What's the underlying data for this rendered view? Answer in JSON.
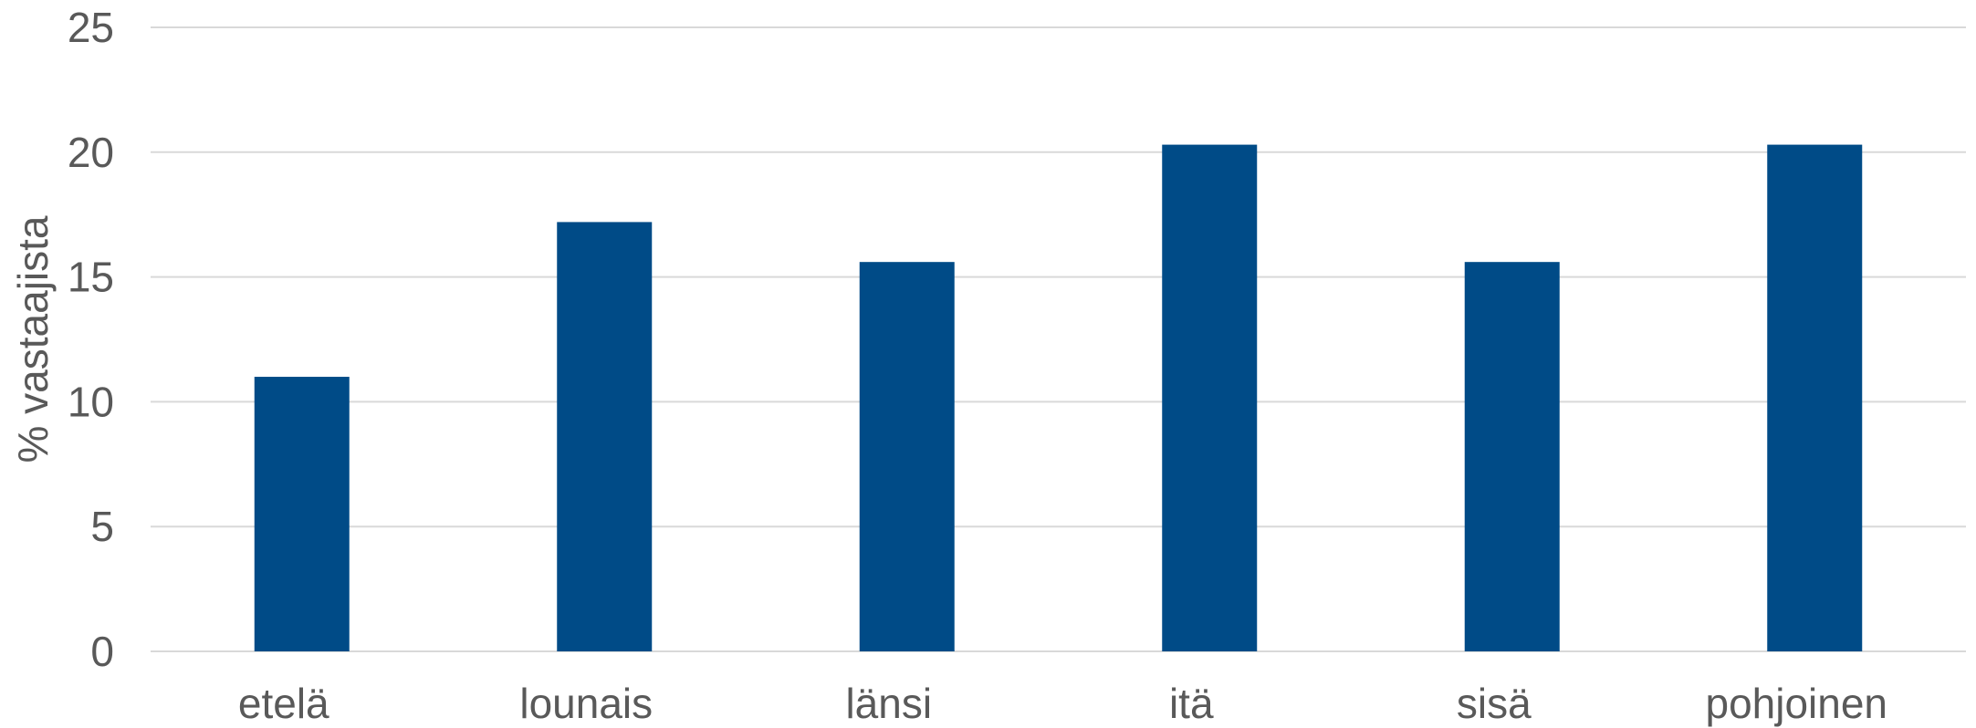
{
  "chart_data": {
    "type": "bar",
    "title": "",
    "xlabel": "",
    "ylabel": "% vastaajista",
    "categories": [
      "etelä",
      "lounais",
      "länsi",
      "itä",
      "sisä",
      "pohjoinen"
    ],
    "values": [
      11.0,
      17.2,
      15.6,
      20.3,
      15.6,
      20.3
    ],
    "ylim": [
      0,
      25
    ],
    "yticks": [
      0,
      5,
      10,
      15,
      20,
      25
    ],
    "grid": true,
    "legend": "none",
    "colors": {
      "bar": "#004b87",
      "grid": "#d9d9d9",
      "text": "#595959"
    }
  }
}
